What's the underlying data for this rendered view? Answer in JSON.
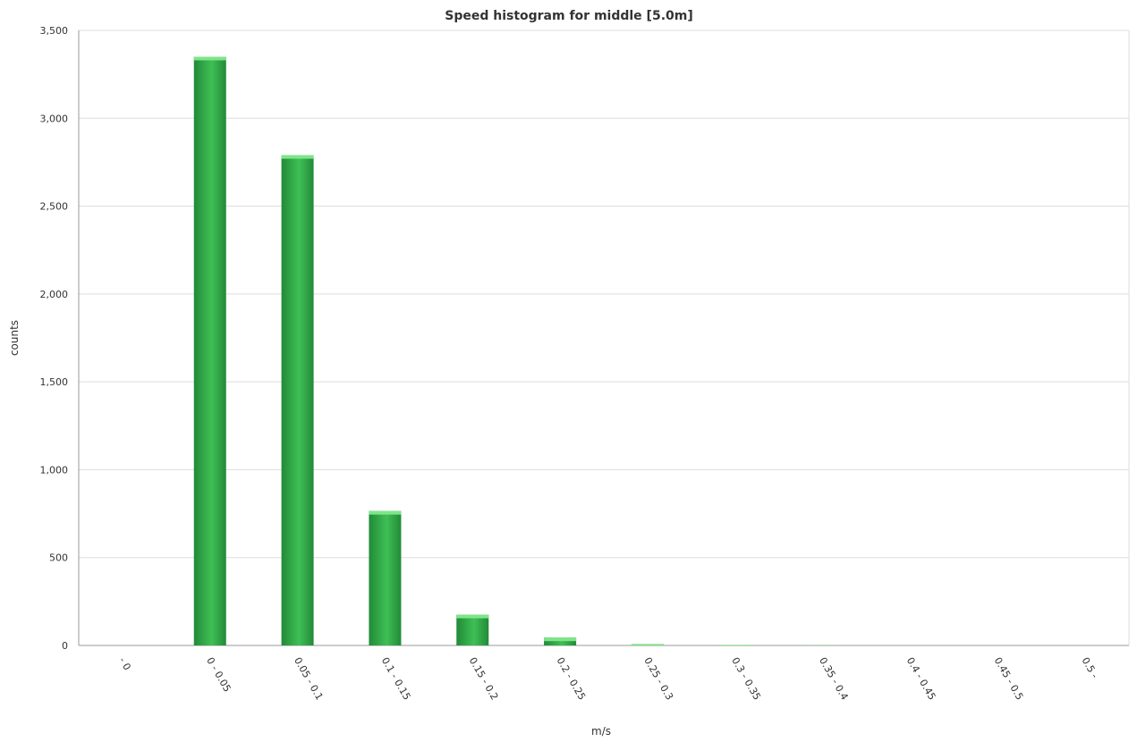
{
  "chart_data": {
    "type": "bar",
    "title": "Speed histogram for middle [5.0m]",
    "xlabel": "m/s",
    "ylabel": "counts",
    "categories": [
      "- 0",
      "0 - 0.05",
      "0.05 - 0.1",
      "0.1 - 0.15",
      "0.15 - 0.2",
      "0.2 - 0.25",
      "0.25 - 0.3",
      "0.3 - 0.35",
      "0.35 - 0.4",
      "0.4 - 0.45",
      "0.45 - 0.5",
      "0.5 -"
    ],
    "values": [
      0,
      3350,
      2790,
      765,
      175,
      45,
      8,
      3,
      1,
      0,
      0,
      0
    ],
    "ylim": [
      0,
      3500
    ],
    "yticks": [
      0,
      500,
      1000,
      1500,
      2000,
      2500,
      3000,
      3500
    ],
    "ytick_labels": [
      "0",
      "500",
      "1,000",
      "1,500",
      "2,000",
      "2,500",
      "3,000",
      "3,500"
    ],
    "grid": true,
    "legend": "none",
    "colors": {
      "bar_light": "#3fbf55",
      "bar_dark": "#228a38",
      "bar_top": "#7ee58a",
      "grid": "#dddddd",
      "axis": "#999999"
    }
  }
}
